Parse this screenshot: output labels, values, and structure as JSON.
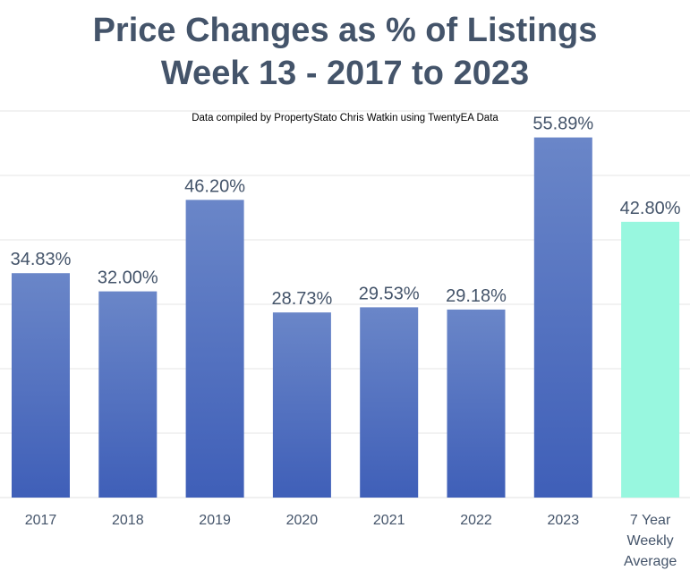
{
  "title_line1": "Price Changes as % of Listings",
  "title_line2": "Week 13 - 2017 to 2023",
  "subtitle": "Data compiled by PropertyStato Chris Watkin using TwentyEA Data",
  "colors": {
    "title": "#44546a",
    "bar_gradient_top": "#6a86c8",
    "bar_gradient_bottom": "#3f5fb8",
    "average_bar": "#98f7df",
    "label_text": "#44546a",
    "gridline": "#e6e6e6"
  },
  "chart_data": {
    "type": "bar",
    "title": "Price Changes as % of Listings Week 13 - 2017 to 2023",
    "categories": [
      [
        "2017"
      ],
      [
        "2018"
      ],
      [
        "2019"
      ],
      [
        "2020"
      ],
      [
        "2021"
      ],
      [
        "2022"
      ],
      [
        "2023"
      ],
      [
        "7 Year",
        "Weekly",
        "Average"
      ]
    ],
    "values": [
      34.83,
      32.0,
      46.2,
      28.73,
      29.53,
      29.18,
      55.89,
      42.8
    ],
    "data_labels": [
      "34.83%",
      "32.00%",
      "46.20%",
      "28.73%",
      "29.53%",
      "29.18%",
      "55.89%",
      "42.80%"
    ],
    "highlight_index": 7,
    "ylim": [
      0,
      60
    ],
    "grid": true,
    "xlabel": "",
    "ylabel": ""
  }
}
